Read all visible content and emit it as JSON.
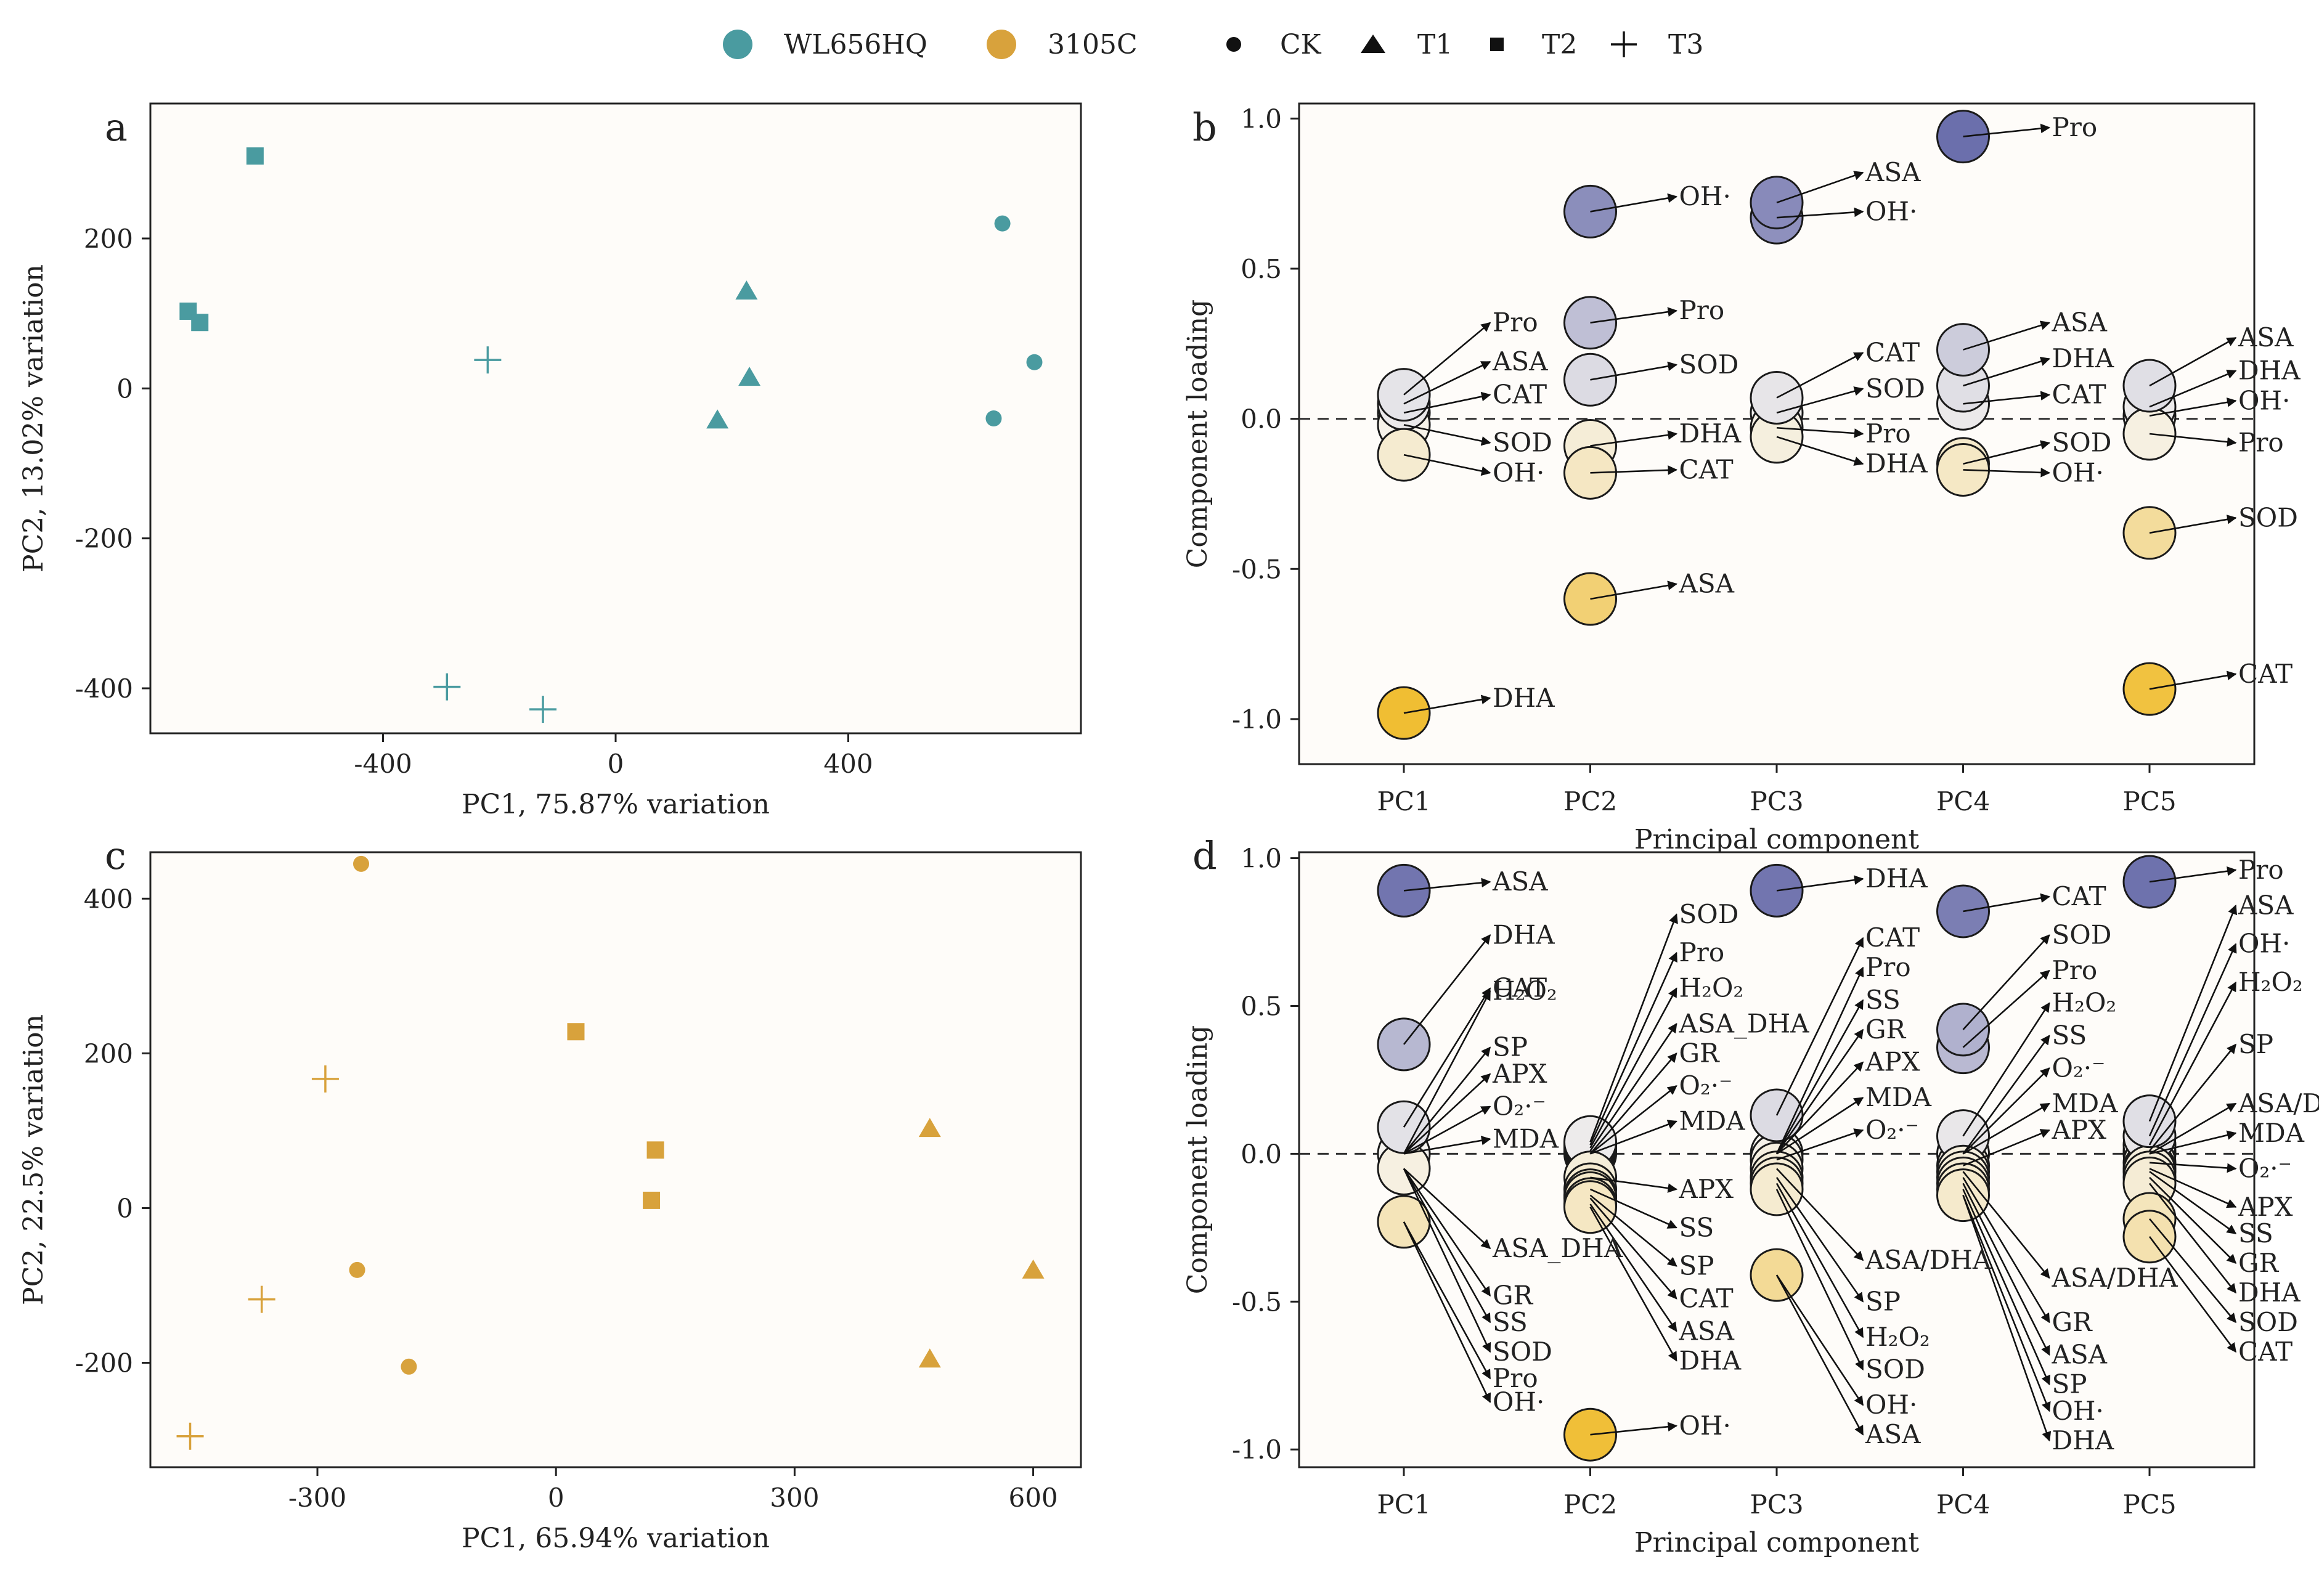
{
  "legend": {
    "varieties": [
      {
        "name": "WL656HQ",
        "color": "#4a9ba0"
      },
      {
        "name": "3105C",
        "color": "#d8a23c"
      }
    ],
    "treatments": [
      {
        "name": "CK",
        "marker": "circle"
      },
      {
        "name": "T1",
        "marker": "triangle"
      },
      {
        "name": "T2",
        "marker": "square"
      },
      {
        "name": "T3",
        "marker": "plus"
      }
    ]
  },
  "colors": {
    "teal": "#4a9ba0",
    "gold": "#d8a23c",
    "loading_neg_strong": "#f0bd30",
    "loading_pos_strong": "#6468a8",
    "loading_neutral": "#f5f3ee"
  },
  "chart_data": [
    {
      "panel": "a",
      "type": "scatter",
      "xlabel": "PC1, 75.87% variation",
      "ylabel": "PC2, 13.02% variation",
      "xlim": [
        -800,
        800
      ],
      "ylim": [
        -460,
        380
      ],
      "xticks": [
        -400,
        0,
        400
      ],
      "yticks": [
        -400,
        -200,
        0,
        200
      ],
      "color": "#4a9ba0",
      "points": [
        {
          "group": "CK",
          "x": 665,
          "y": 220
        },
        {
          "group": "CK",
          "x": 720,
          "y": 35
        },
        {
          "group": "CK",
          "x": 650,
          "y": -40
        },
        {
          "group": "T1",
          "x": 225,
          "y": 130
        },
        {
          "group": "T1",
          "x": 230,
          "y": 15
        },
        {
          "group": "T1",
          "x": 175,
          "y": -42
        },
        {
          "group": "T2",
          "x": -620,
          "y": 310
        },
        {
          "group": "T2",
          "x": -735,
          "y": 103
        },
        {
          "group": "T2",
          "x": -715,
          "y": 88
        },
        {
          "group": "T3",
          "x": -220,
          "y": 38
        },
        {
          "group": "T3",
          "x": -290,
          "y": -398
        },
        {
          "group": "T3",
          "x": -125,
          "y": -428
        }
      ]
    },
    {
      "panel": "b",
      "type": "scatter",
      "subtype": "loading-bubble",
      "xlabel": "Principal component",
      "ylabel": "Component loading",
      "categories": [
        "PC1",
        "PC2",
        "PC3",
        "PC4",
        "PC5"
      ],
      "ylim": [
        -1.15,
        1.05
      ],
      "yticks": [
        1.0,
        0.5,
        0.0,
        -0.5,
        -1.0
      ],
      "ytick_labels": [
        "1.0",
        "0.5",
        "0.0",
        "-0.5",
        "-1.0"
      ],
      "points": [
        {
          "pc": 1,
          "v": 0.08,
          "label": "Pro",
          "ly": 0.32
        },
        {
          "pc": 1,
          "v": 0.05,
          "label": "ASA",
          "ly": 0.19
        },
        {
          "pc": 1,
          "v": 0.02,
          "label": "CAT",
          "ly": 0.08
        },
        {
          "pc": 1,
          "v": -0.02,
          "label": "SOD",
          "ly": -0.08
        },
        {
          "pc": 1,
          "v": -0.12,
          "label": "OH·",
          "ly": -0.18
        },
        {
          "pc": 1,
          "v": -0.98,
          "label": "DHA",
          "ly": -0.93
        },
        {
          "pc": 2,
          "v": 0.69,
          "label": "OH·",
          "ly": 0.74
        },
        {
          "pc": 2,
          "v": 0.32,
          "label": "Pro",
          "ly": 0.36
        },
        {
          "pc": 2,
          "v": 0.13,
          "label": "SOD",
          "ly": 0.18
        },
        {
          "pc": 2,
          "v": -0.09,
          "label": "DHA",
          "ly": -0.05
        },
        {
          "pc": 2,
          "v": -0.18,
          "label": "CAT",
          "ly": -0.17
        },
        {
          "pc": 2,
          "v": -0.6,
          "label": "ASA",
          "ly": -0.55
        },
        {
          "pc": 3,
          "v": 0.72,
          "label": "ASA",
          "ly": 0.82
        },
        {
          "pc": 3,
          "v": 0.67,
          "label": "OH·",
          "ly": 0.69
        },
        {
          "pc": 3,
          "v": 0.07,
          "label": "CAT",
          "ly": 0.22
        },
        {
          "pc": 3,
          "v": 0.02,
          "label": "SOD",
          "ly": 0.1
        },
        {
          "pc": 3,
          "v": -0.03,
          "label": "Pro",
          "ly": -0.05
        },
        {
          "pc": 3,
          "v": -0.06,
          "label": "DHA",
          "ly": -0.15
        },
        {
          "pc": 4,
          "v": 0.94,
          "label": "Pro",
          "ly": 0.97
        },
        {
          "pc": 4,
          "v": 0.23,
          "label": "ASA",
          "ly": 0.32
        },
        {
          "pc": 4,
          "v": 0.11,
          "label": "DHA",
          "ly": 0.2
        },
        {
          "pc": 4,
          "v": 0.05,
          "label": "CAT",
          "ly": 0.08
        },
        {
          "pc": 4,
          "v": -0.15,
          "label": "SOD",
          "ly": -0.08
        },
        {
          "pc": 4,
          "v": -0.17,
          "label": "OH·",
          "ly": -0.18
        },
        {
          "pc": 5,
          "v": 0.11,
          "label": "ASA",
          "ly": 0.27
        },
        {
          "pc": 5,
          "v": 0.04,
          "label": "DHA",
          "ly": 0.16
        },
        {
          "pc": 5,
          "v": 0.01,
          "label": "OH·",
          "ly": 0.06
        },
        {
          "pc": 5,
          "v": -0.05,
          "label": "Pro",
          "ly": -0.08
        },
        {
          "pc": 5,
          "v": -0.38,
          "label": "SOD",
          "ly": -0.33
        },
        {
          "pc": 5,
          "v": -0.9,
          "label": "CAT",
          "ly": -0.85
        }
      ]
    },
    {
      "panel": "c",
      "type": "scatter",
      "xlabel": "PC1, 65.94% variation",
      "ylabel": "PC2, 22.5% variation",
      "xlim": [
        -510,
        660
      ],
      "ylim": [
        -335,
        460
      ],
      "xticks": [
        -300,
        0,
        300,
        600
      ],
      "yticks": [
        -200,
        0,
        200,
        400
      ],
      "color": "#d8a23c",
      "points": [
        {
          "group": "CK",
          "x": -245,
          "y": 445
        },
        {
          "group": "CK",
          "x": -250,
          "y": -80
        },
        {
          "group": "CK",
          "x": -185,
          "y": -205
        },
        {
          "group": "T1",
          "x": 470,
          "y": 103
        },
        {
          "group": "T1",
          "x": 600,
          "y": -80
        },
        {
          "group": "T1",
          "x": 470,
          "y": -195
        },
        {
          "group": "T2",
          "x": 25,
          "y": 228
        },
        {
          "group": "T2",
          "x": 125,
          "y": 75
        },
        {
          "group": "T2",
          "x": 120,
          "y": 10
        },
        {
          "group": "T3",
          "x": -290,
          "y": 167
        },
        {
          "group": "T3",
          "x": -370,
          "y": -118
        },
        {
          "group": "T3",
          "x": -460,
          "y": -295
        }
      ]
    },
    {
      "panel": "d",
      "type": "scatter",
      "subtype": "loading-bubble",
      "xlabel": "Principal component",
      "ylabel": "Component loading",
      "categories": [
        "PC1",
        "PC2",
        "PC3",
        "PC4",
        "PC5"
      ],
      "ylim": [
        -1.06,
        1.02
      ],
      "yticks": [
        1.0,
        0.5,
        0.0,
        -0.5,
        -1.0
      ],
      "ytick_labels": [
        "1.0",
        "0.5",
        "0.0",
        "-0.5",
        "-1.0"
      ],
      "points": [
        {
          "pc": 1,
          "v": 0.89,
          "label": "ASA",
          "ly": 0.92
        },
        {
          "pc": 1,
          "v": 0.37,
          "label": "DHA",
          "ly": 0.74
        },
        {
          "pc": 1,
          "v": 0.09,
          "label": "CAT",
          "ly": 0.56
        },
        {
          "pc": 1,
          "v": 0.0,
          "label": "H₂O₂",
          "ly": 0.55
        },
        {
          "pc": 1,
          "v": 0.0,
          "label": "SP",
          "ly": 0.36
        },
        {
          "pc": 1,
          "v": 0.0,
          "label": "APX",
          "ly": 0.27
        },
        {
          "pc": 1,
          "v": 0.0,
          "label": "O₂·⁻",
          "ly": 0.16
        },
        {
          "pc": 1,
          "v": 0.0,
          "label": "MDA",
          "ly": 0.05
        },
        {
          "pc": 1,
          "v": -0.05,
          "label": "ASA_DHA",
          "ly": -0.32
        },
        {
          "pc": 1,
          "v": -0.05,
          "label": "GR",
          "ly": -0.48
        },
        {
          "pc": 1,
          "v": -0.05,
          "label": "SS",
          "ly": -0.57
        },
        {
          "pc": 1,
          "v": -0.05,
          "label": "SOD",
          "ly": -0.67
        },
        {
          "pc": 1,
          "v": -0.23,
          "label": "Pro",
          "ly": -0.76
        },
        {
          "pc": 1,
          "v": -0.23,
          "label": "OH·",
          "ly": -0.84
        },
        {
          "pc": 2,
          "v": 0.04,
          "label": "SOD",
          "ly": 0.81
        },
        {
          "pc": 2,
          "v": 0.03,
          "label": "Pro",
          "ly": 0.68
        },
        {
          "pc": 2,
          "v": 0.02,
          "label": "H₂O₂",
          "ly": 0.56
        },
        {
          "pc": 2,
          "v": 0.01,
          "label": "ASA_DHA",
          "ly": 0.44
        },
        {
          "pc": 2,
          "v": 0.0,
          "label": "GR",
          "ly": 0.34
        },
        {
          "pc": 2,
          "v": 0.0,
          "label": "O₂·⁻",
          "ly": 0.23
        },
        {
          "pc": 2,
          "v": 0.0,
          "label": "MDA",
          "ly": 0.11
        },
        {
          "pc": 2,
          "v": -0.08,
          "label": "APX",
          "ly": -0.12
        },
        {
          "pc": 2,
          "v": -0.12,
          "label": "SS",
          "ly": -0.25
        },
        {
          "pc": 2,
          "v": -0.14,
          "label": "SP",
          "ly": -0.38
        },
        {
          "pc": 2,
          "v": -0.15,
          "label": "CAT",
          "ly": -0.49
        },
        {
          "pc": 2,
          "v": -0.17,
          "label": "ASA",
          "ly": -0.6
        },
        {
          "pc": 2,
          "v": -0.18,
          "label": "DHA",
          "ly": -0.7
        },
        {
          "pc": 2,
          "v": -0.95,
          "label": "OH·",
          "ly": -0.92
        },
        {
          "pc": 3,
          "v": 0.89,
          "label": "DHA",
          "ly": 0.93
        },
        {
          "pc": 3,
          "v": 0.13,
          "label": "CAT",
          "ly": 0.73
        },
        {
          "pc": 3,
          "v": 0.0,
          "label": "Pro",
          "ly": 0.63
        },
        {
          "pc": 3,
          "v": 0.0,
          "label": "SS",
          "ly": 0.52
        },
        {
          "pc": 3,
          "v": 0.0,
          "label": "GR",
          "ly": 0.42
        },
        {
          "pc": 3,
          "v": 0.0,
          "label": "APX",
          "ly": 0.31
        },
        {
          "pc": 3,
          "v": 0.0,
          "label": "MDA",
          "ly": 0.19
        },
        {
          "pc": 3,
          "v": -0.02,
          "label": "O₂·⁻",
          "ly": 0.08
        },
        {
          "pc": 3,
          "v": -0.05,
          "label": "ASA/DHA",
          "ly": -0.36
        },
        {
          "pc": 3,
          "v": -0.08,
          "label": "SP",
          "ly": -0.5
        },
        {
          "pc": 3,
          "v": -0.1,
          "label": "H₂O₂",
          "ly": -0.62
        },
        {
          "pc": 3,
          "v": -0.12,
          "label": "SOD",
          "ly": -0.73
        },
        {
          "pc": 3,
          "v": -0.41,
          "label": "OH·",
          "ly": -0.85
        },
        {
          "pc": 3,
          "v": -0.41,
          "label": "ASA",
          "ly": -0.95
        },
        {
          "pc": 4,
          "v": 0.82,
          "label": "CAT",
          "ly": 0.87
        },
        {
          "pc": 4,
          "v": 0.42,
          "label": "SOD",
          "ly": 0.74
        },
        {
          "pc": 4,
          "v": 0.36,
          "label": "Pro",
          "ly": 0.62
        },
        {
          "pc": 4,
          "v": 0.06,
          "label": "H₂O₂",
          "ly": 0.51
        },
        {
          "pc": 4,
          "v": 0.0,
          "label": "SS",
          "ly": 0.4
        },
        {
          "pc": 4,
          "v": 0.0,
          "label": "O₂·⁻",
          "ly": 0.29
        },
        {
          "pc": 4,
          "v": 0.0,
          "label": "MDA",
          "ly": 0.17
        },
        {
          "pc": 4,
          "v": -0.04,
          "label": "APX",
          "ly": 0.08
        },
        {
          "pc": 4,
          "v": -0.06,
          "label": "ASA/DHA",
          "ly": -0.42
        },
        {
          "pc": 4,
          "v": -0.08,
          "label": "GR",
          "ly": -0.57
        },
        {
          "pc": 4,
          "v": -0.1,
          "label": "ASA",
          "ly": -0.68
        },
        {
          "pc": 4,
          "v": -0.12,
          "label": "SP",
          "ly": -0.78
        },
        {
          "pc": 4,
          "v": -0.14,
          "label": "OH·",
          "ly": -0.87
        },
        {
          "pc": 4,
          "v": -0.14,
          "label": "DHA",
          "ly": -0.97
        },
        {
          "pc": 5,
          "v": 0.92,
          "label": "Pro",
          "ly": 0.96
        },
        {
          "pc": 5,
          "v": 0.11,
          "label": "ASA",
          "ly": 0.84
        },
        {
          "pc": 5,
          "v": 0.06,
          "label": "OH·",
          "ly": 0.71
        },
        {
          "pc": 5,
          "v": 0.03,
          "label": "H₂O₂",
          "ly": 0.58
        },
        {
          "pc": 5,
          "v": 0.01,
          "label": "SP",
          "ly": 0.37
        },
        {
          "pc": 5,
          "v": 0.0,
          "label": "ASA/DHA",
          "ly": 0.17
        },
        {
          "pc": 5,
          "v": 0.0,
          "label": "MDA",
          "ly": 0.07
        },
        {
          "pc": 5,
          "v": -0.03,
          "label": "O₂·⁻",
          "ly": -0.05
        },
        {
          "pc": 5,
          "v": -0.05,
          "label": "APX",
          "ly": -0.18
        },
        {
          "pc": 5,
          "v": -0.06,
          "label": "SS",
          "ly": -0.27
        },
        {
          "pc": 5,
          "v": -0.08,
          "label": "GR",
          "ly": -0.37
        },
        {
          "pc": 5,
          "v": -0.1,
          "label": "DHA",
          "ly": -0.47
        },
        {
          "pc": 5,
          "v": -0.22,
          "label": "SOD",
          "ly": -0.57
        },
        {
          "pc": 5,
          "v": -0.28,
          "label": "CAT",
          "ly": -0.67
        }
      ]
    }
  ]
}
